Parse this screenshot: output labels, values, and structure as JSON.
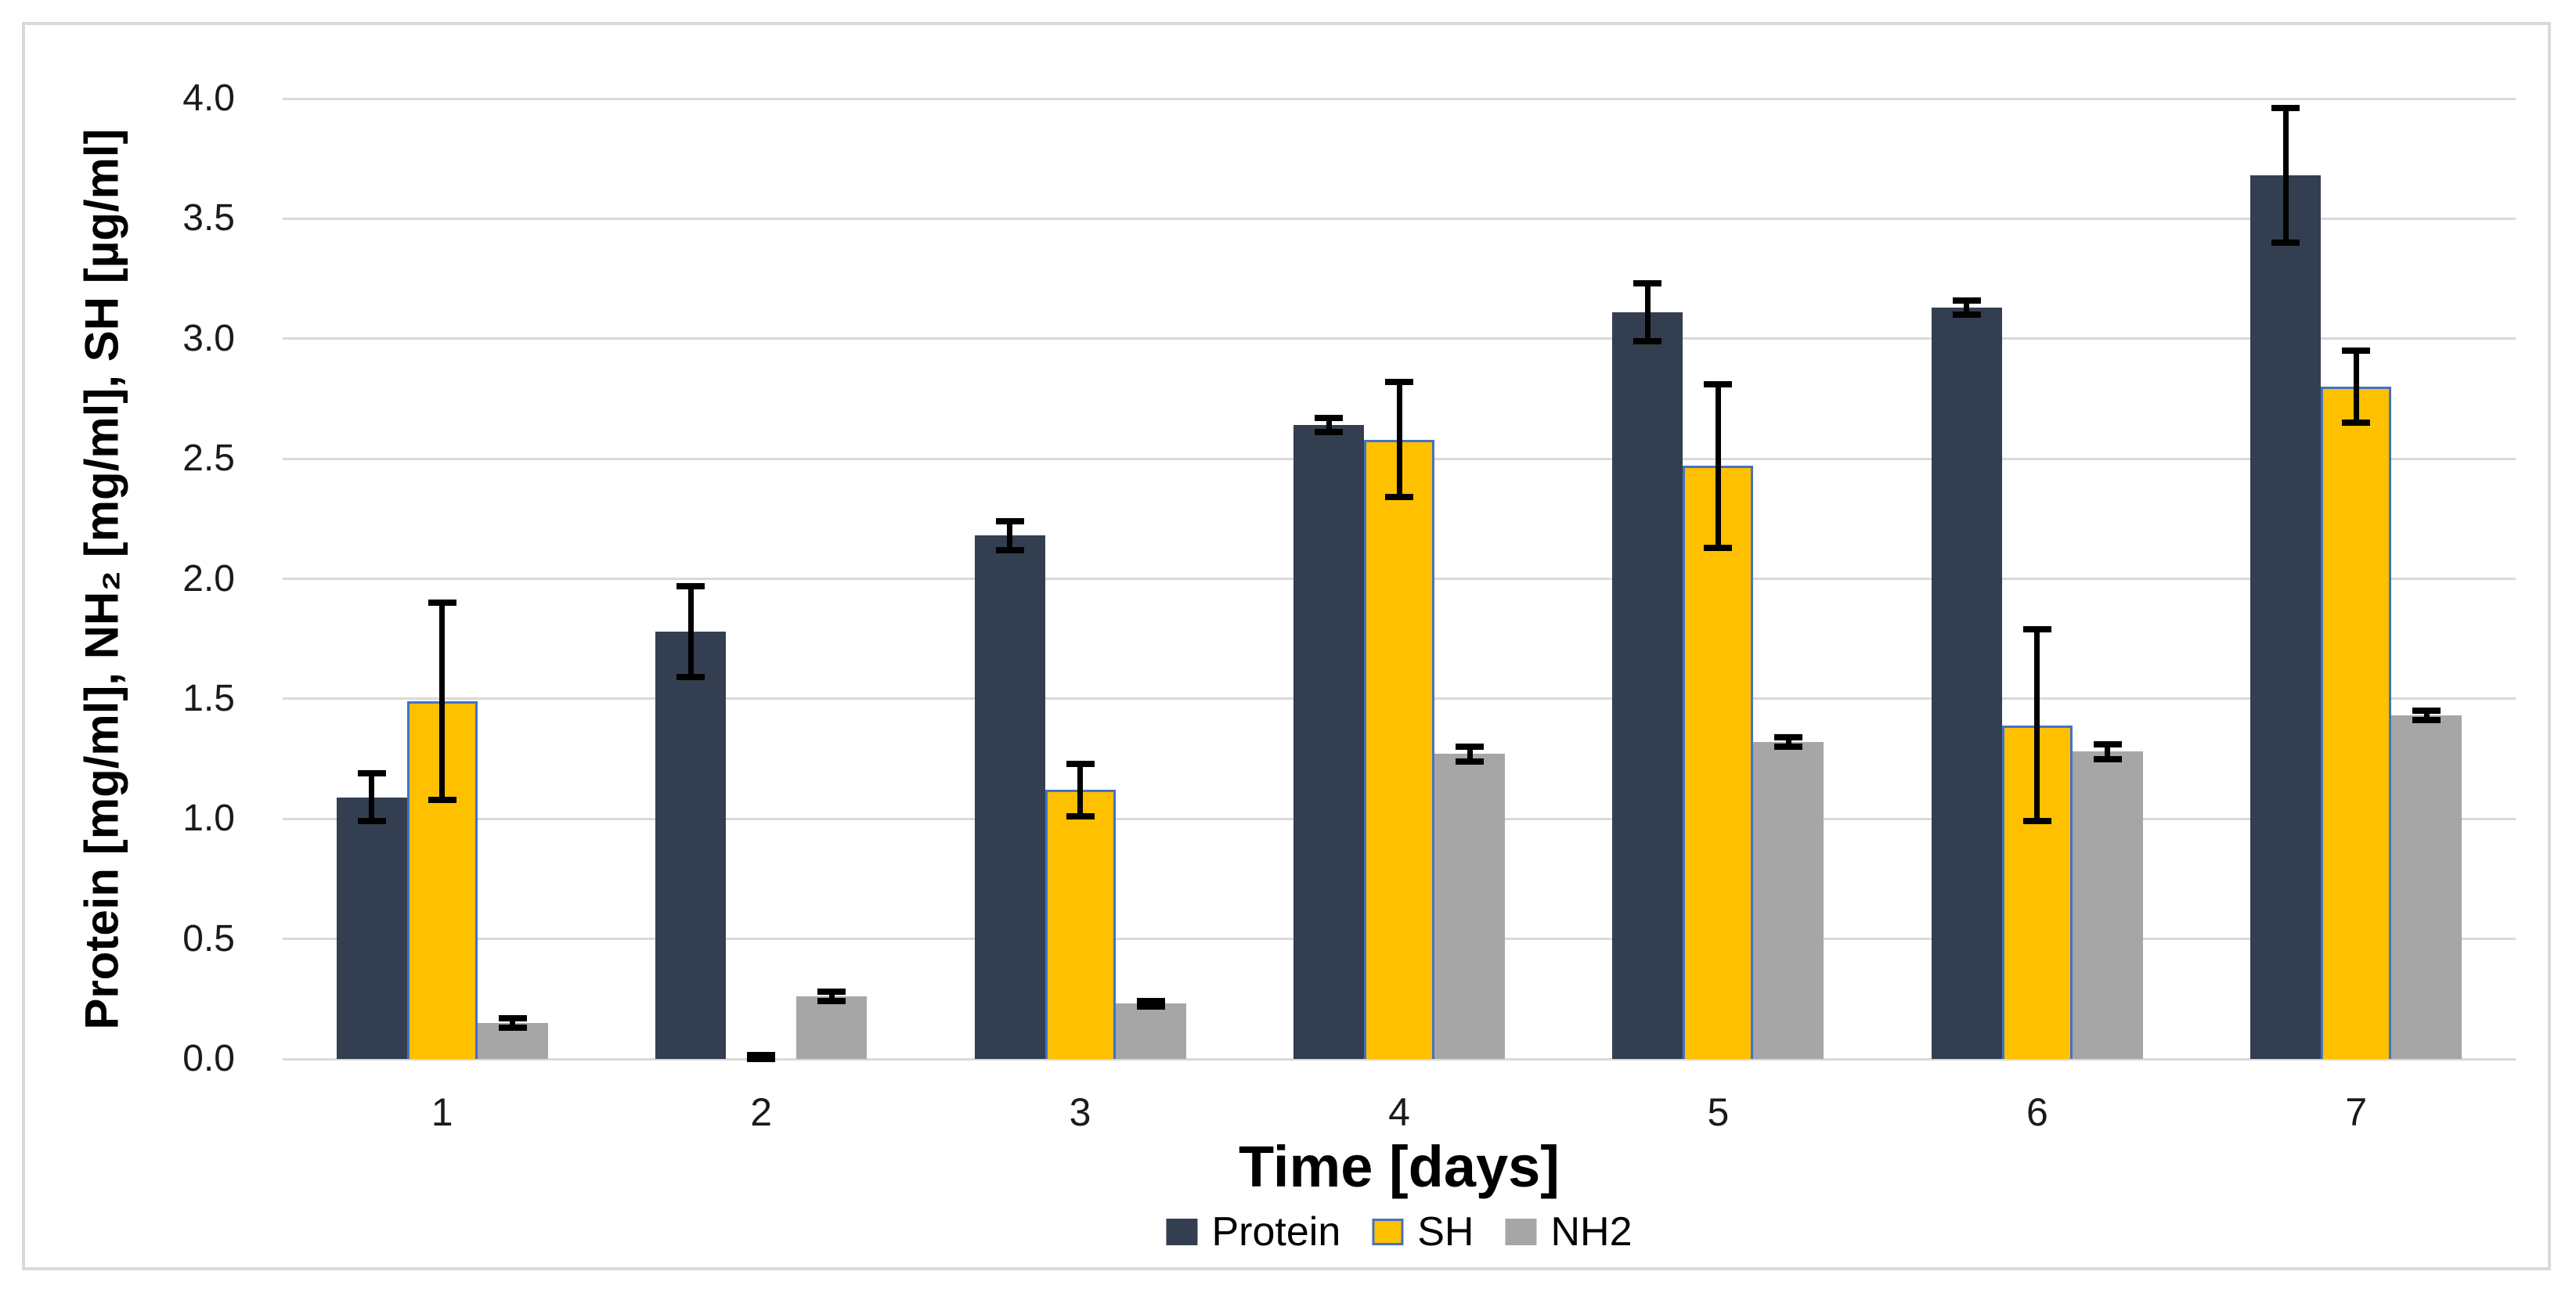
{
  "chart_data": {
    "type": "bar",
    "title": "",
    "xlabel": "Time [days]",
    "ylabel": "Protein [mg/ml], NH₂ [mg/ml], SH [µg/ml]",
    "categories": [
      "1",
      "2",
      "3",
      "4",
      "5",
      "6",
      "7"
    ],
    "ylim": [
      0.0,
      4.0
    ],
    "y_tick_step": 0.5,
    "y_tick_labels": [
      "0.0",
      "0.5",
      "1.0",
      "1.5",
      "2.0",
      "2.5",
      "3.0",
      "3.5",
      "4.0"
    ],
    "grid": true,
    "error_bars": true,
    "legend_position": "bottom",
    "series": [
      {
        "name": "Protein",
        "color": "#333F50",
        "values": [
          1.09,
          1.78,
          2.18,
          2.64,
          3.11,
          3.13,
          3.68
        ],
        "errors": [
          0.1,
          0.19,
          0.06,
          0.03,
          0.12,
          0.03,
          0.28
        ]
      },
      {
        "name": "SH",
        "color": "#FFC000",
        "border_color": "#4472C4",
        "values": [
          1.49,
          0.0,
          1.12,
          2.58,
          2.47,
          1.39,
          2.8
        ],
        "errors": [
          0.41,
          0.015,
          0.11,
          0.24,
          0.34,
          0.4,
          0.15
        ]
      },
      {
        "name": "NH2",
        "color": "#A6A6A6",
        "values": [
          0.15,
          0.26,
          0.23,
          1.27,
          1.32,
          1.28,
          1.43
        ],
        "errors": [
          0.02,
          0.02,
          0.01,
          0.03,
          0.02,
          0.03,
          0.02
        ]
      }
    ]
  },
  "colors": {
    "background": "#FFFFFF",
    "gridline": "#D9D9D9",
    "frame": "#D9D9D9",
    "error_bar": "#000000",
    "tick_text": "#1A1A1A",
    "title_text": "#000000"
  }
}
